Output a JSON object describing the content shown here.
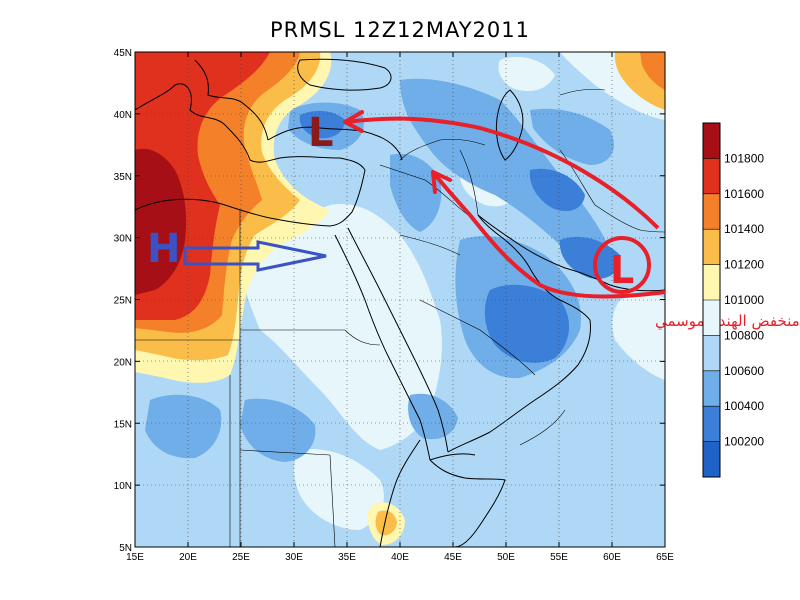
{
  "title": "PRMSL 12Z12MAY2011",
  "axes": {
    "lon_ticks": [
      "15E",
      "20E",
      "25E",
      "30E",
      "35E",
      "40E",
      "45E",
      "50E",
      "55E",
      "60E",
      "65E"
    ],
    "lat_ticks": [
      "45N",
      "40N",
      "35N",
      "30N",
      "25N",
      "20N",
      "15N",
      "10N",
      "5N"
    ],
    "lon_range": [
      15,
      65
    ],
    "lat_range": [
      5,
      45
    ]
  },
  "colorbar": {
    "labels": [
      "101800",
      "101600",
      "101400",
      "101200",
      "101000",
      "100800",
      "100600",
      "100400",
      "100200"
    ],
    "colors": [
      "#a50f15",
      "#e0301e",
      "#f4802a",
      "#fbbd4a",
      "#fff6b0",
      "#e6f6fb",
      "#aed8f5",
      "#6faee8",
      "#3c7fd8",
      "#1f63c9"
    ]
  },
  "annotations": {
    "high_marker": "H",
    "low_marker_north": "L",
    "low_marker_east": "L",
    "arabic_label": "منخفض الهند الموسمي",
    "colors": {
      "high": "#3a52c4",
      "low_north": "#8b1a1a",
      "low_east": "#e8202a",
      "arrow_red": "#e8202a",
      "arrow_blue": "#3a52c4"
    }
  }
}
